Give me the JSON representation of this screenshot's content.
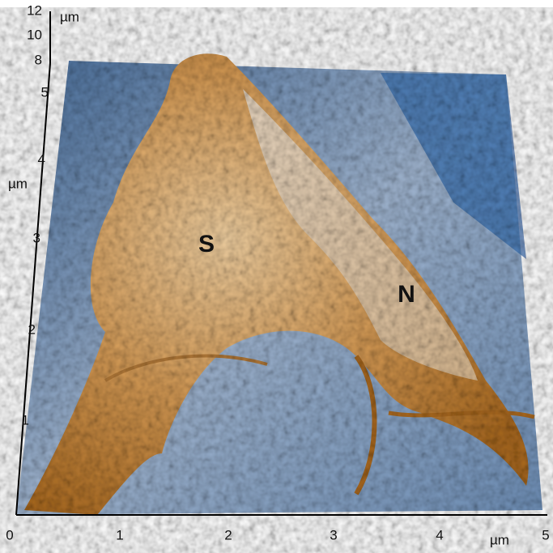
{
  "x_axis": {
    "ticks": [
      0,
      1,
      2,
      3,
      4,
      5
    ],
    "unit": "µm"
  },
  "y_axis": {
    "ticks": [
      1,
      2,
      3,
      4,
      5
    ],
    "unit": "µm"
  },
  "z_axis": {
    "ticks": [
      8,
      10,
      12
    ],
    "unit": "µm"
  },
  "labels": [
    "S",
    "N"
  ]
}
